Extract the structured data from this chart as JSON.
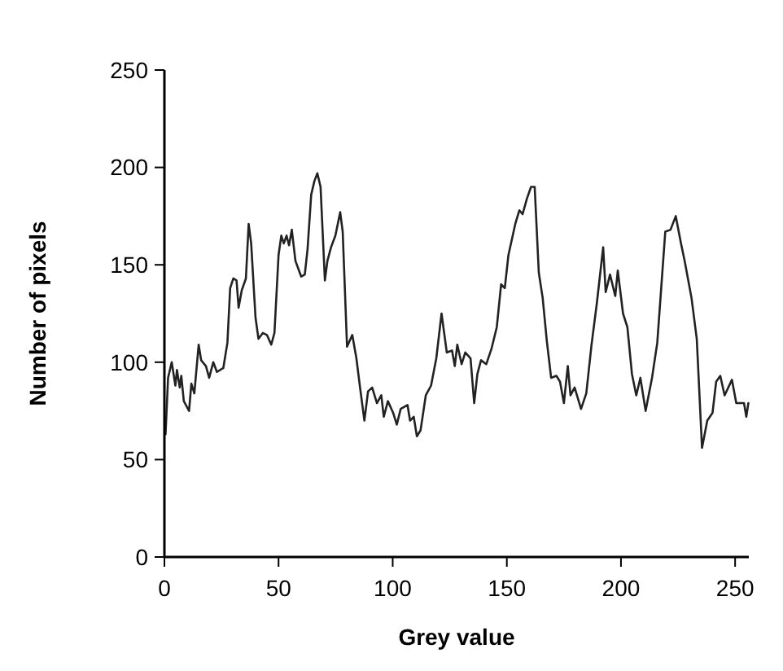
{
  "chart_data": {
    "type": "line",
    "xlabel": "Grey value",
    "ylabel": "Number of pixels",
    "xlim": [
      0,
      256
    ],
    "ylim": [
      0,
      250
    ],
    "xticks": [
      0,
      50,
      100,
      150,
      200,
      250
    ],
    "yticks": [
      0,
      50,
      100,
      150,
      200,
      250
    ],
    "marker": "none",
    "line_style": "solid",
    "series": [
      {
        "color": "#222222",
        "x": [
          0.5,
          1.6,
          3.2,
          4.8,
          5.5,
          6.7,
          7.4,
          8.5,
          10.8,
          11.8,
          13.1,
          15,
          16.1,
          18.2,
          19.6,
          21.4,
          23,
          25.8,
          27.6,
          28.8,
          30.2,
          31.6,
          32.5,
          33.9,
          35.7,
          36.9,
          38,
          39.9,
          41.2,
          43.1,
          44.9,
          46.8,
          48.2,
          50,
          51.2,
          52.3,
          53.5,
          54.6,
          55.8,
          57.4,
          59.9,
          61.5,
          62.7,
          64.3,
          65.7,
          67,
          68.4,
          70.3,
          71.4,
          73,
          74.9,
          77,
          78.1,
          80,
          82.3,
          84.1,
          85.7,
          87.6,
          89.2,
          91,
          93.1,
          95,
          96.1,
          97.9,
          100.2,
          101.8,
          103.5,
          106.5,
          107.6,
          109.2,
          110.6,
          112.2,
          114.5,
          116.8,
          119.1,
          121.4,
          123.7,
          126,
          127.2,
          128.3,
          130.2,
          131.8,
          134.1,
          135.7,
          137.1,
          138.7,
          141,
          143.3,
          145.6,
          147.5,
          149.1,
          150.7,
          153.7,
          155.5,
          156.9,
          158.8,
          160.6,
          162.2,
          164,
          165.7,
          167.5,
          169.4,
          171.7,
          173.3,
          175,
          176.7,
          177.9,
          179.7,
          182.5,
          184.8,
          187.1,
          189.4,
          192.2,
          193.3,
          195.2,
          197.5,
          198.6,
          200.9,
          202.8,
          204.8,
          206.7,
          208.5,
          210.8,
          213.6,
          215.9,
          219.4,
          221.7,
          224,
          226.3,
          227.9,
          230.9,
          233.2,
          235.5,
          237.8,
          240.1,
          241.7,
          243.5,
          245.4,
          248.6,
          250.5,
          253.9,
          254.9,
          255.8
        ],
        "values": [
          63,
          92,
          100,
          88,
          96,
          87,
          93,
          80,
          75,
          89,
          84,
          109,
          101,
          98,
          92,
          100,
          95,
          97,
          110,
          138,
          143,
          142,
          128,
          137,
          143,
          171,
          161,
          123,
          112,
          115,
          114,
          109,
          115,
          155,
          165,
          161,
          165,
          160,
          168,
          152,
          144,
          145,
          158,
          186,
          193,
          197,
          190,
          142,
          152,
          159,
          165,
          177,
          167,
          108,
          114,
          102,
          87,
          70,
          85,
          87,
          79,
          83,
          72,
          80,
          74,
          68,
          76,
          78,
          70,
          72,
          62,
          65,
          83,
          88,
          102,
          125,
          105,
          106,
          98,
          109,
          99,
          105,
          102,
          79,
          94,
          101,
          99,
          107,
          118,
          140,
          138,
          155,
          171,
          178,
          176,
          184,
          190,
          190,
          146,
          133,
          111,
          92,
          93,
          90,
          79,
          98,
          83,
          87,
          76,
          84,
          109,
          130,
          159,
          136,
          145,
          134,
          147,
          125,
          118,
          94,
          83,
          92,
          75,
          92,
          110,
          167,
          168,
          175,
          161,
          152,
          133,
          112,
          56,
          70,
          74,
          90,
          93,
          83,
          91,
          79,
          79,
          72,
          79
        ]
      }
    ]
  }
}
